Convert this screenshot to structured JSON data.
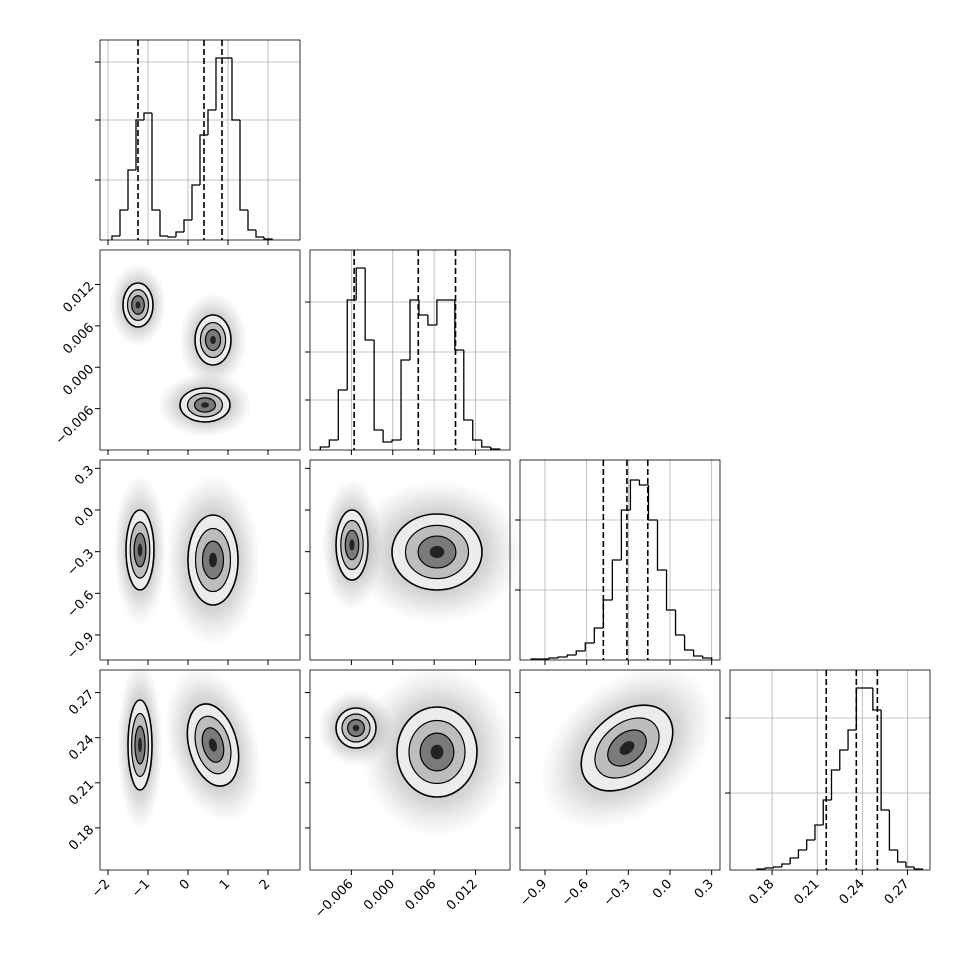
{
  "chart_data": {
    "type": "corner",
    "grid": true,
    "color": "#000000",
    "params": [
      {
        "xlim": [
          -2.2,
          2.8
        ],
        "xticks": [
          {
            "value": -2,
            "label": "−2"
          },
          {
            "value": -1,
            "label": "−1"
          },
          0,
          1,
          2
        ],
        "bins": [
          -1.9,
          -1.7,
          -1.5,
          -1.3,
          -1.1,
          -0.9,
          -0.7,
          -0.5,
          -0.3,
          -0.1,
          0.1,
          0.3,
          0.5,
          0.7,
          0.9,
          1.1,
          1.3,
          1.5,
          1.7,
          1.9,
          2.1
        ],
        "counts": [
          4,
          30,
          70,
          120,
          127,
          30,
          4,
          3,
          8,
          20,
          55,
          105,
          130,
          182,
          182,
          120,
          30,
          10,
          3,
          1
        ],
        "hist_ylim": [
          0,
          200
        ],
        "hist_yticks": [
          60,
          120,
          178
        ],
        "quantiles": [
          -1.25,
          0.4,
          0.85
        ]
      },
      {
        "xlim": [
          -0.012,
          0.017
        ],
        "xticks": [
          {
            "value": -0.006,
            "label": "−0.006"
          },
          {
            "value": 0,
            "label": "0.000"
          },
          0.006,
          0.012
        ],
        "bins": [
          -0.0105,
          -0.0092,
          -0.0079,
          -0.0066,
          -0.0053,
          -0.004,
          -0.0027,
          -0.0014,
          -0.0001,
          0.0012,
          0.0025,
          0.0038,
          0.0051,
          0.0064,
          0.0077,
          0.009,
          0.0103,
          0.0116,
          0.0129,
          0.0142,
          0.0155
        ],
        "counts": [
          3,
          10,
          60,
          150,
          182,
          110,
          20,
          8,
          10,
          90,
          150,
          135,
          125,
          150,
          150,
          100,
          30,
          10,
          3,
          1
        ],
        "hist_ylim": [
          0,
          200
        ],
        "hist_yticks": [
          50,
          98,
          148
        ],
        "quantiles": [
          -0.0056,
          0.0037,
          0.0091
        ]
      },
      {
        "xlim": [
          -1.08,
          0.36
        ],
        "xticks": [
          {
            "value": -0.9,
            "label": "−0.9"
          },
          {
            "value": -0.6,
            "label": "−0.6"
          },
          {
            "value": -0.3,
            "label": "−0.3"
          },
          {
            "value": 0,
            "label": "0.0"
          },
          0.3
        ],
        "bins": [
          -1.0,
          -0.935,
          -0.87,
          -0.805,
          -0.74,
          -0.675,
          -0.61,
          -0.545,
          -0.48,
          -0.415,
          -0.35,
          -0.285,
          -0.22,
          -0.155,
          -0.09,
          -0.025,
          0.04,
          0.105,
          0.17,
          0.235,
          0.3
        ],
        "counts": [
          1,
          1,
          2,
          3,
          5,
          9,
          17,
          32,
          60,
          100,
          150,
          180,
          175,
          140,
          90,
          50,
          25,
          10,
          4,
          2
        ],
        "hist_ylim": [
          0,
          200
        ],
        "hist_yticks": [
          70,
          140
        ],
        "quantiles": [
          -0.48,
          -0.31,
          -0.16
        ]
      },
      {
        "xlim": [
          0.152,
          0.285
        ],
        "xticks": [
          0.18,
          0.21,
          0.24,
          0.27
        ],
        "bins": [
          0.17,
          0.1755,
          0.181,
          0.1865,
          0.192,
          0.1975,
          0.203,
          0.2085,
          0.214,
          0.2195,
          0.225,
          0.2305,
          0.236,
          0.2415,
          0.247,
          0.2525,
          0.258,
          0.2635,
          0.269,
          0.2745,
          0.28
        ],
        "counts": [
          1,
          2,
          3,
          6,
          12,
          20,
          30,
          45,
          70,
          100,
          120,
          140,
          182,
          182,
          160,
          60,
          20,
          8,
          3,
          1
        ],
        "hist_ylim": [
          0,
          200
        ],
        "hist_yticks": [
          77,
          152
        ],
        "quantiles": [
          0.216,
          0.236,
          0.25
        ]
      }
    ]
  }
}
